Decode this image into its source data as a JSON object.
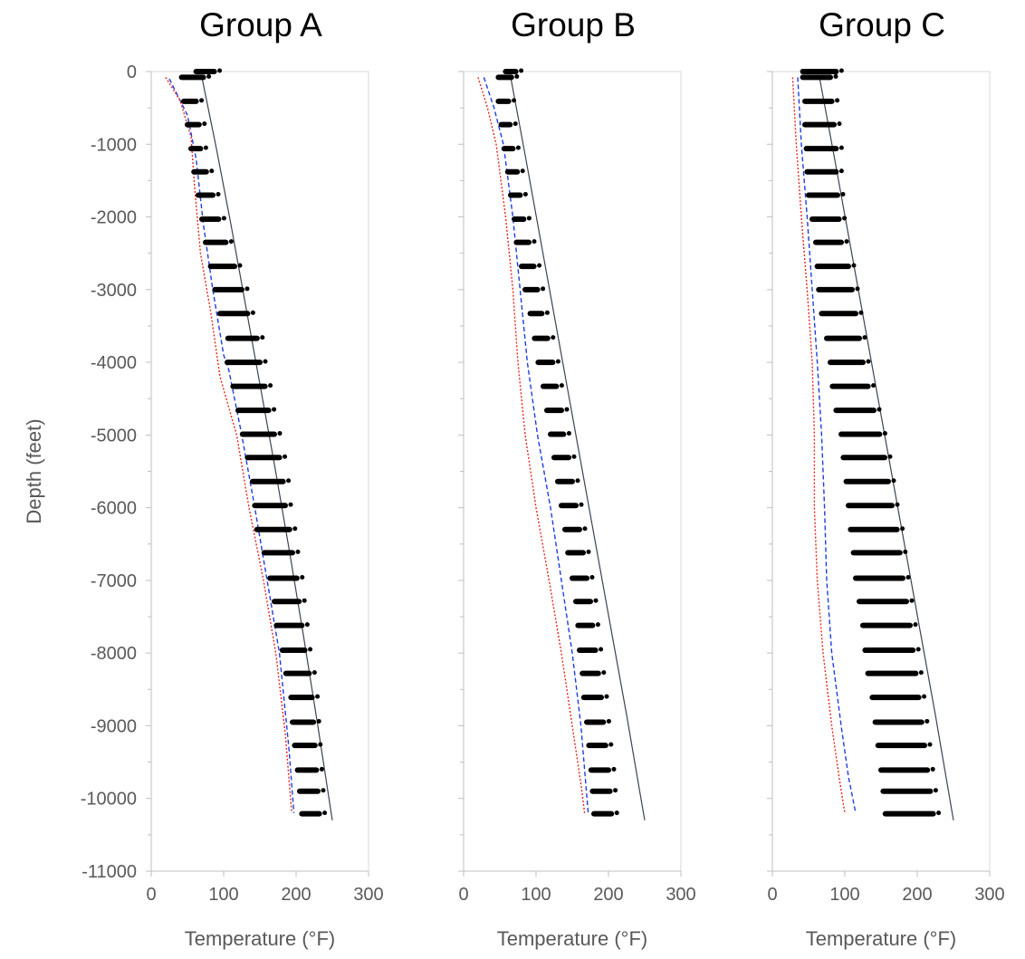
{
  "chart_data": [
    {
      "type": "scatter",
      "title": "Group A",
      "xlabel": "Temperature (°F)",
      "ylabel": "Depth (feet)",
      "xlim": [
        0,
        300
      ],
      "ylim": [
        -11000,
        0
      ],
      "x_ticks": [
        "0",
        "100",
        "200",
        "300"
      ],
      "y_ticks": [
        "0",
        "-1000",
        "-2000",
        "-3000",
        "-4000",
        "-5000",
        "-6000",
        "-7000",
        "-8000",
        "-9000",
        "-10000",
        "-11000"
      ],
      "grid": false,
      "legend": "none",
      "point_bands": [
        {
          "depth": 0,
          "x_min": 62,
          "x_max": 87
        },
        {
          "depth": -80,
          "x_min": 42,
          "x_max": 72
        },
        {
          "depth": -410,
          "x_min": 45,
          "x_max": 62
        },
        {
          "depth": -730,
          "x_min": 50,
          "x_max": 66
        },
        {
          "depth": -1060,
          "x_min": 55,
          "x_max": 68
        },
        {
          "depth": -1380,
          "x_min": 59,
          "x_max": 76
        },
        {
          "depth": -1700,
          "x_min": 65,
          "x_max": 85
        },
        {
          "depth": -2030,
          "x_min": 70,
          "x_max": 93
        },
        {
          "depth": -2350,
          "x_min": 75,
          "x_max": 103
        },
        {
          "depth": -2680,
          "x_min": 82,
          "x_max": 115
        },
        {
          "depth": -3000,
          "x_min": 88,
          "x_max": 125
        },
        {
          "depth": -3330,
          "x_min": 95,
          "x_max": 133
        },
        {
          "depth": -3670,
          "x_min": 106,
          "x_max": 146
        },
        {
          "depth": -4000,
          "x_min": 105,
          "x_max": 150
        },
        {
          "depth": -4330,
          "x_min": 113,
          "x_max": 157
        },
        {
          "depth": -4660,
          "x_min": 120,
          "x_max": 162
        },
        {
          "depth": -4990,
          "x_min": 126,
          "x_max": 170
        },
        {
          "depth": -5310,
          "x_min": 133,
          "x_max": 177
        },
        {
          "depth": -5640,
          "x_min": 140,
          "x_max": 182
        },
        {
          "depth": -5970,
          "x_min": 143,
          "x_max": 185
        },
        {
          "depth": -6300,
          "x_min": 146,
          "x_max": 191
        },
        {
          "depth": -6620,
          "x_min": 156,
          "x_max": 195
        },
        {
          "depth": -6970,
          "x_min": 164,
          "x_max": 201
        },
        {
          "depth": -7290,
          "x_min": 170,
          "x_max": 204
        },
        {
          "depth": -7620,
          "x_min": 173,
          "x_max": 208
        },
        {
          "depth": -7960,
          "x_min": 181,
          "x_max": 212
        },
        {
          "depth": -8280,
          "x_min": 186,
          "x_max": 218
        },
        {
          "depth": -8610,
          "x_min": 193,
          "x_max": 222
        },
        {
          "depth": -8950,
          "x_min": 195,
          "x_max": 224
        },
        {
          "depth": -9270,
          "x_min": 198,
          "x_max": 226
        },
        {
          "depth": -9610,
          "x_min": 202,
          "x_max": 228
        },
        {
          "depth": -9900,
          "x_min": 205,
          "x_max": 230
        },
        {
          "depth": -10210,
          "x_min": 208,
          "x_max": 232
        }
      ],
      "lines": [
        {
          "style": "solid",
          "color": "#3a4452",
          "x": [
            70,
            90,
            110,
            130,
            150,
            170,
            190,
            210,
            230,
            250
          ],
          "y": [
            -80,
            -1060,
            -2100,
            -3200,
            -4300,
            -5400,
            -6550,
            -7750,
            -9000,
            -10300
          ]
        },
        {
          "style": "dashed",
          "color": "#1f3de0",
          "x": [
            25,
            50,
            62,
            72,
            85,
            100,
            107,
            125,
            143,
            160,
            177,
            190,
            197
          ],
          "y": [
            -100,
            -600,
            -1200,
            -2100,
            -3000,
            -3900,
            -4100,
            -5000,
            -6000,
            -7000,
            -8000,
            -9300,
            -10200
          ]
        },
        {
          "style": "dotted",
          "color": "#e8241c",
          "x": [
            20,
            40,
            55,
            60,
            68,
            82,
            95,
            118,
            135,
            155,
            172,
            185,
            194
          ],
          "y": [
            -80,
            -400,
            -900,
            -1600,
            -2500,
            -3300,
            -4200,
            -5000,
            -6000,
            -7000,
            -8000,
            -9100,
            -10200
          ]
        }
      ]
    },
    {
      "type": "scatter",
      "title": "Group B",
      "xlabel": "Temperature (°F)",
      "xlim": [
        0,
        300
      ],
      "ylim": [
        -11000,
        0
      ],
      "x_ticks": [
        "0",
        "100",
        "200",
        "300"
      ],
      "grid": false,
      "legend": "none",
      "point_bands": [
        {
          "depth": 0,
          "x_min": 58,
          "x_max": 72
        },
        {
          "depth": -80,
          "x_min": 48,
          "x_max": 66
        },
        {
          "depth": -410,
          "x_min": 48,
          "x_max": 62
        },
        {
          "depth": -730,
          "x_min": 52,
          "x_max": 64
        },
        {
          "depth": -1060,
          "x_min": 56,
          "x_max": 68
        },
        {
          "depth": -1380,
          "x_min": 61,
          "x_max": 74
        },
        {
          "depth": -1700,
          "x_min": 65,
          "x_max": 78
        },
        {
          "depth": -2030,
          "x_min": 70,
          "x_max": 83
        },
        {
          "depth": -2350,
          "x_min": 73,
          "x_max": 90
        },
        {
          "depth": -2680,
          "x_min": 80,
          "x_max": 97
        },
        {
          "depth": -3000,
          "x_min": 85,
          "x_max": 102
        },
        {
          "depth": -3330,
          "x_min": 92,
          "x_max": 108
        },
        {
          "depth": -3670,
          "x_min": 98,
          "x_max": 116
        },
        {
          "depth": -4000,
          "x_min": 103,
          "x_max": 123
        },
        {
          "depth": -4330,
          "x_min": 110,
          "x_max": 128
        },
        {
          "depth": -4660,
          "x_min": 115,
          "x_max": 135
        },
        {
          "depth": -4990,
          "x_min": 120,
          "x_max": 138
        },
        {
          "depth": -5310,
          "x_min": 125,
          "x_max": 145
        },
        {
          "depth": -5640,
          "x_min": 130,
          "x_max": 150
        },
        {
          "depth": -5970,
          "x_min": 135,
          "x_max": 155
        },
        {
          "depth": -6300,
          "x_min": 140,
          "x_max": 160
        },
        {
          "depth": -6620,
          "x_min": 144,
          "x_max": 165
        },
        {
          "depth": -6970,
          "x_min": 150,
          "x_max": 170
        },
        {
          "depth": -7290,
          "x_min": 155,
          "x_max": 175
        },
        {
          "depth": -7620,
          "x_min": 158,
          "x_max": 178
        },
        {
          "depth": -7960,
          "x_min": 160,
          "x_max": 182
        },
        {
          "depth": -8280,
          "x_min": 164,
          "x_max": 186
        },
        {
          "depth": -8610,
          "x_min": 166,
          "x_max": 190
        },
        {
          "depth": -8950,
          "x_min": 170,
          "x_max": 193
        },
        {
          "depth": -9270,
          "x_min": 173,
          "x_max": 196
        },
        {
          "depth": -9610,
          "x_min": 176,
          "x_max": 200
        },
        {
          "depth": -9900,
          "x_min": 178,
          "x_max": 202
        },
        {
          "depth": -10210,
          "x_min": 180,
          "x_max": 204
        }
      ],
      "lines": [
        {
          "style": "solid",
          "color": "#3a4452",
          "x": [
            65,
            85,
            105,
            125,
            145,
            165,
            185,
            205,
            225,
            250
          ],
          "y": [
            -80,
            -1150,
            -2250,
            -3350,
            -4450,
            -5550,
            -6650,
            -7750,
            -8850,
            -10300
          ]
        },
        {
          "style": "dashed",
          "color": "#1f3de0",
          "x": [
            28,
            42,
            55,
            68,
            78,
            88,
            102,
            120,
            135,
            150,
            162,
            172
          ],
          "y": [
            -80,
            -500,
            -1000,
            -2000,
            -3000,
            -4000,
            -5000,
            -6000,
            -7000,
            -8000,
            -9000,
            -10200
          ]
        },
        {
          "style": "dotted",
          "color": "#e8241c",
          "x": [
            20,
            33,
            45,
            58,
            68,
            75,
            85,
            100,
            118,
            135,
            150,
            162,
            167
          ],
          "y": [
            -80,
            -500,
            -1000,
            -2000,
            -3000,
            -4000,
            -5000,
            -6000,
            -7000,
            -8000,
            -9000,
            -9800,
            -10200
          ]
        }
      ]
    },
    {
      "type": "scatter",
      "title": "Group C",
      "xlabel": "Temperature (°F)",
      "xlim": [
        0,
        300
      ],
      "ylim": [
        -11000,
        0
      ],
      "x_ticks": [
        "0",
        "100",
        "200",
        "300"
      ],
      "grid": false,
      "legend": "none",
      "point_bands": [
        {
          "depth": 0,
          "x_min": 42,
          "x_max": 88
        },
        {
          "depth": -80,
          "x_min": 42,
          "x_max": 80
        },
        {
          "depth": -410,
          "x_min": 45,
          "x_max": 82
        },
        {
          "depth": -730,
          "x_min": 45,
          "x_max": 85
        },
        {
          "depth": -1060,
          "x_min": 47,
          "x_max": 88
        },
        {
          "depth": -1380,
          "x_min": 48,
          "x_max": 88
        },
        {
          "depth": -1700,
          "x_min": 50,
          "x_max": 90
        },
        {
          "depth": -2030,
          "x_min": 55,
          "x_max": 92
        },
        {
          "depth": -2350,
          "x_min": 60,
          "x_max": 95
        },
        {
          "depth": -2680,
          "x_min": 62,
          "x_max": 105
        },
        {
          "depth": -3000,
          "x_min": 64,
          "x_max": 110
        },
        {
          "depth": -3330,
          "x_min": 68,
          "x_max": 115
        },
        {
          "depth": -3670,
          "x_min": 75,
          "x_max": 120
        },
        {
          "depth": -4000,
          "x_min": 80,
          "x_max": 125
        },
        {
          "depth": -4330,
          "x_min": 83,
          "x_max": 132
        },
        {
          "depth": -4660,
          "x_min": 88,
          "x_max": 140
        },
        {
          "depth": -4990,
          "x_min": 95,
          "x_max": 148
        },
        {
          "depth": -5310,
          "x_min": 98,
          "x_max": 155
        },
        {
          "depth": -5640,
          "x_min": 102,
          "x_max": 160
        },
        {
          "depth": -5970,
          "x_min": 105,
          "x_max": 165
        },
        {
          "depth": -6300,
          "x_min": 108,
          "x_max": 172
        },
        {
          "depth": -6620,
          "x_min": 112,
          "x_max": 176
        },
        {
          "depth": -6970,
          "x_min": 115,
          "x_max": 180
        },
        {
          "depth": -7290,
          "x_min": 120,
          "x_max": 185
        },
        {
          "depth": -7620,
          "x_min": 125,
          "x_max": 190
        },
        {
          "depth": -7960,
          "x_min": 128,
          "x_max": 194
        },
        {
          "depth": -8280,
          "x_min": 132,
          "x_max": 198
        },
        {
          "depth": -8610,
          "x_min": 138,
          "x_max": 202
        },
        {
          "depth": -8950,
          "x_min": 142,
          "x_max": 206
        },
        {
          "depth": -9270,
          "x_min": 146,
          "x_max": 210
        },
        {
          "depth": -9610,
          "x_min": 150,
          "x_max": 214
        },
        {
          "depth": -9900,
          "x_min": 153,
          "x_max": 218
        },
        {
          "depth": -10210,
          "x_min": 156,
          "x_max": 222
        }
      ],
      "lines": [
        {
          "style": "solid",
          "color": "#3a4452",
          "x": [
            65,
            85,
            105,
            125,
            145,
            165,
            185,
            205,
            225,
            250
          ],
          "y": [
            -80,
            -1150,
            -2250,
            -3350,
            -4450,
            -5550,
            -6650,
            -7750,
            -8850,
            -10300
          ]
        },
        {
          "style": "dashed",
          "color": "#1f3de0",
          "x": [
            35,
            40,
            48,
            55,
            62,
            68,
            72,
            75,
            82,
            95,
            105,
            115
          ],
          "y": [
            -80,
            -1000,
            -2000,
            -3000,
            -4000,
            -5000,
            -6000,
            -7000,
            -8000,
            -9000,
            -9700,
            -10200
          ]
        },
        {
          "style": "dotted",
          "color": "#e8241c",
          "x": [
            28,
            33,
            40,
            48,
            55,
            58,
            58,
            62,
            70,
            82,
            92,
            100
          ],
          "y": [
            -80,
            -1000,
            -2000,
            -3000,
            -4000,
            -5000,
            -6000,
            -7000,
            -8000,
            -9000,
            -9700,
            -10200
          ]
        }
      ]
    }
  ]
}
